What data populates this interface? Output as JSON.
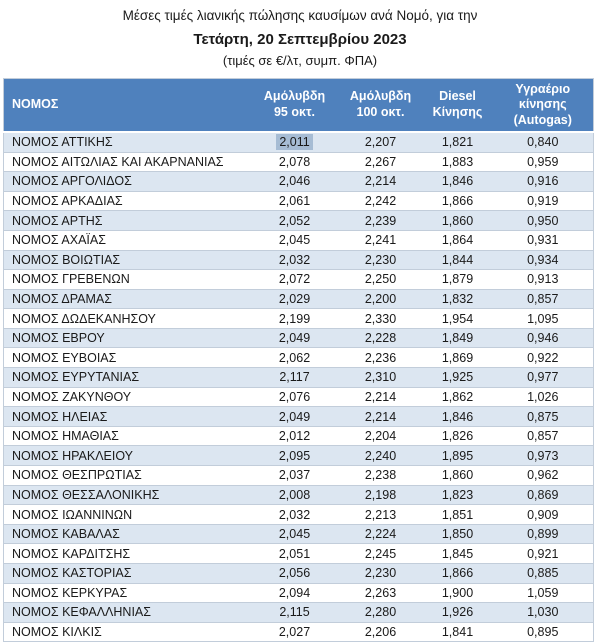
{
  "header": {
    "title": "Μέσες τιμές λιανικής πώλησης καυσίμων ανά Νομό, για την",
    "date": "Τετάρτη, 20 Σεπτεμβρίου 2023",
    "note": "(τιμές σε €/λτ, συμπ. ΦΠΑ)"
  },
  "colors": {
    "header_bg": "#4f81bd",
    "header_text": "#ffffff",
    "band_row_bg": "#dce6f1",
    "row_border": "#c2cdda",
    "selection_highlight": "#a6bcd4"
  },
  "table": {
    "columns": [
      "ΝΟΜΟΣ",
      "Αμόλυβδη\n95 οκτ.",
      "Αμόλυβδη\n100 οκτ.",
      "Diesel\nΚίνησης",
      "Υγραέριο\nκίνησης\n(Autogas)"
    ],
    "selection": {
      "row": 0,
      "column": "unleaded95"
    },
    "rows": [
      {
        "name": "ΝΟΜΟΣ ΑΤΤΙΚΗΣ",
        "unleaded95": "2,011",
        "unleaded100": "2,207",
        "diesel": "1,821",
        "autogas": "0,840"
      },
      {
        "name": "ΝΟΜΟΣ ΑΙΤΩΛΙΑΣ ΚΑΙ ΑΚΑΡΝΑΝΙΑΣ",
        "unleaded95": "2,078",
        "unleaded100": "2,267",
        "diesel": "1,883",
        "autogas": "0,959"
      },
      {
        "name": "ΝΟΜΟΣ ΑΡΓΟΛΙΔΟΣ",
        "unleaded95": "2,046",
        "unleaded100": "2,214",
        "diesel": "1,846",
        "autogas": "0,916"
      },
      {
        "name": "ΝΟΜΟΣ ΑΡΚΑΔΙΑΣ",
        "unleaded95": "2,061",
        "unleaded100": "2,242",
        "diesel": "1,866",
        "autogas": "0,919"
      },
      {
        "name": "ΝΟΜΟΣ ΑΡΤΗΣ",
        "unleaded95": "2,052",
        "unleaded100": "2,239",
        "diesel": "1,860",
        "autogas": "0,950"
      },
      {
        "name": "ΝΟΜΟΣ ΑΧΑΪΑΣ",
        "unleaded95": "2,045",
        "unleaded100": "2,241",
        "diesel": "1,864",
        "autogas": "0,931"
      },
      {
        "name": "ΝΟΜΟΣ ΒΟΙΩΤΙΑΣ",
        "unleaded95": "2,032",
        "unleaded100": "2,230",
        "diesel": "1,844",
        "autogas": "0,934"
      },
      {
        "name": "ΝΟΜΟΣ ΓΡΕΒΕΝΩΝ",
        "unleaded95": "2,072",
        "unleaded100": "2,250",
        "diesel": "1,879",
        "autogas": "0,913"
      },
      {
        "name": "ΝΟΜΟΣ ΔΡΑΜΑΣ",
        "unleaded95": "2,029",
        "unleaded100": "2,200",
        "diesel": "1,832",
        "autogas": "0,857"
      },
      {
        "name": "ΝΟΜΟΣ ΔΩΔΕΚΑΝΗΣΟΥ",
        "unleaded95": "2,199",
        "unleaded100": "2,330",
        "diesel": "1,954",
        "autogas": "1,095"
      },
      {
        "name": "ΝΟΜΟΣ ΕΒΡΟΥ",
        "unleaded95": "2,049",
        "unleaded100": "2,228",
        "diesel": "1,849",
        "autogas": "0,946"
      },
      {
        "name": "ΝΟΜΟΣ ΕΥΒΟΙΑΣ",
        "unleaded95": "2,062",
        "unleaded100": "2,236",
        "diesel": "1,869",
        "autogas": "0,922"
      },
      {
        "name": "ΝΟΜΟΣ ΕΥΡΥΤΑΝΙΑΣ",
        "unleaded95": "2,117",
        "unleaded100": "2,310",
        "diesel": "1,925",
        "autogas": "0,977"
      },
      {
        "name": "ΝΟΜΟΣ ΖΑΚΥΝΘΟΥ",
        "unleaded95": "2,076",
        "unleaded100": "2,214",
        "diesel": "1,862",
        "autogas": "1,026"
      },
      {
        "name": "ΝΟΜΟΣ ΗΛΕΙΑΣ",
        "unleaded95": "2,049",
        "unleaded100": "2,214",
        "diesel": "1,846",
        "autogas": "0,875"
      },
      {
        "name": "ΝΟΜΟΣ ΗΜΑΘΙΑΣ",
        "unleaded95": "2,012",
        "unleaded100": "2,204",
        "diesel": "1,826",
        "autogas": "0,857"
      },
      {
        "name": "ΝΟΜΟΣ ΗΡΑΚΛΕΙΟΥ",
        "unleaded95": "2,095",
        "unleaded100": "2,240",
        "diesel": "1,895",
        "autogas": "0,973"
      },
      {
        "name": "ΝΟΜΟΣ ΘΕΣΠΡΩΤΙΑΣ",
        "unleaded95": "2,037",
        "unleaded100": "2,238",
        "diesel": "1,860",
        "autogas": "0,962"
      },
      {
        "name": "ΝΟΜΟΣ ΘΕΣΣΑΛΟΝΙΚΗΣ",
        "unleaded95": "2,008",
        "unleaded100": "2,198",
        "diesel": "1,823",
        "autogas": "0,869"
      },
      {
        "name": "ΝΟΜΟΣ ΙΩΑΝΝΙΝΩΝ",
        "unleaded95": "2,032",
        "unleaded100": "2,213",
        "diesel": "1,851",
        "autogas": "0,909"
      },
      {
        "name": "ΝΟΜΟΣ ΚΑΒΑΛΑΣ",
        "unleaded95": "2,045",
        "unleaded100": "2,224",
        "diesel": "1,850",
        "autogas": "0,899"
      },
      {
        "name": "ΝΟΜΟΣ ΚΑΡΔΙΤΣΗΣ",
        "unleaded95": "2,051",
        "unleaded100": "2,245",
        "diesel": "1,845",
        "autogas": "0,921"
      },
      {
        "name": "ΝΟΜΟΣ ΚΑΣΤΟΡΙΑΣ",
        "unleaded95": "2,056",
        "unleaded100": "2,230",
        "diesel": "1,866",
        "autogas": "0,885"
      },
      {
        "name": "ΝΟΜΟΣ ΚΕΡΚΥΡΑΣ",
        "unleaded95": "2,094",
        "unleaded100": "2,263",
        "diesel": "1,900",
        "autogas": "1,059"
      },
      {
        "name": "ΝΟΜΟΣ ΚΕΦΑΛΛΗΝΙΑΣ",
        "unleaded95": "2,115",
        "unleaded100": "2,280",
        "diesel": "1,926",
        "autogas": "1,030"
      },
      {
        "name": "ΝΟΜΟΣ ΚΙΛΚΙΣ",
        "unleaded95": "2,027",
        "unleaded100": "2,206",
        "diesel": "1,841",
        "autogas": "0,895"
      }
    ]
  }
}
